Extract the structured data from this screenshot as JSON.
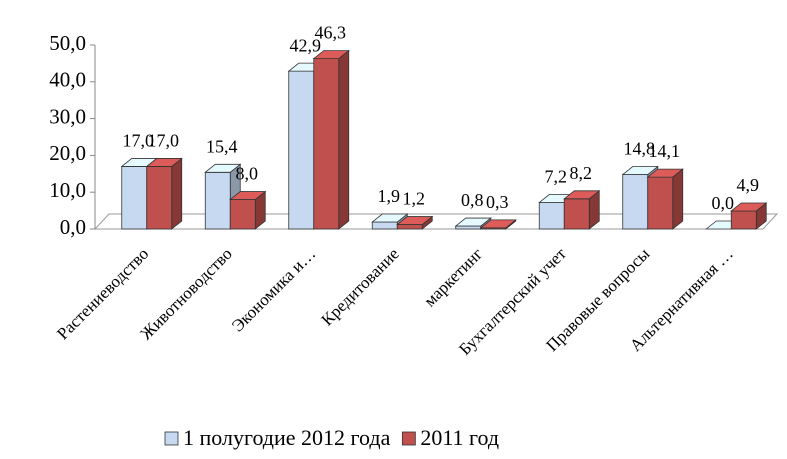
{
  "chart_data": {
    "type": "bar3d",
    "categories": [
      "Растениеводство",
      "Животноводство",
      "Экономика и…",
      "Кредитование",
      "маркетинг",
      "Бухгалтерский учет",
      "Правовые вопросы",
      "Альтернативная …"
    ],
    "series": [
      {
        "name": "1 полугодие 2012 года",
        "color": "#c6d9f1",
        "values": [
          17.0,
          15.4,
          42.9,
          1.9,
          0.8,
          7.2,
          14.8,
          0.0
        ],
        "value_labels": [
          "17,0",
          "15,4",
          "42,9",
          "1,9",
          "0,8",
          "7,2",
          "14,8",
          "0,0"
        ]
      },
      {
        "name": "2011 год",
        "color": "#c0504d",
        "values": [
          17.0,
          8.0,
          46.3,
          1.2,
          0.3,
          8.2,
          14.1,
          4.9
        ],
        "value_labels": [
          "17,0",
          "8,0",
          "46,3",
          "1,2",
          "0,3",
          "8,2",
          "14,1",
          "4,9"
        ]
      }
    ],
    "ylim": [
      0,
      50
    ],
    "yticks": [
      {
        "value": 0,
        "label": "0,0"
      },
      {
        "value": 10,
        "label": "10,0"
      },
      {
        "value": 20,
        "label": "20,0"
      },
      {
        "value": 30,
        "label": "30,0"
      },
      {
        "value": 40,
        "label": "40,0"
      },
      {
        "value": 50,
        "label": "50,0"
      }
    ]
  }
}
